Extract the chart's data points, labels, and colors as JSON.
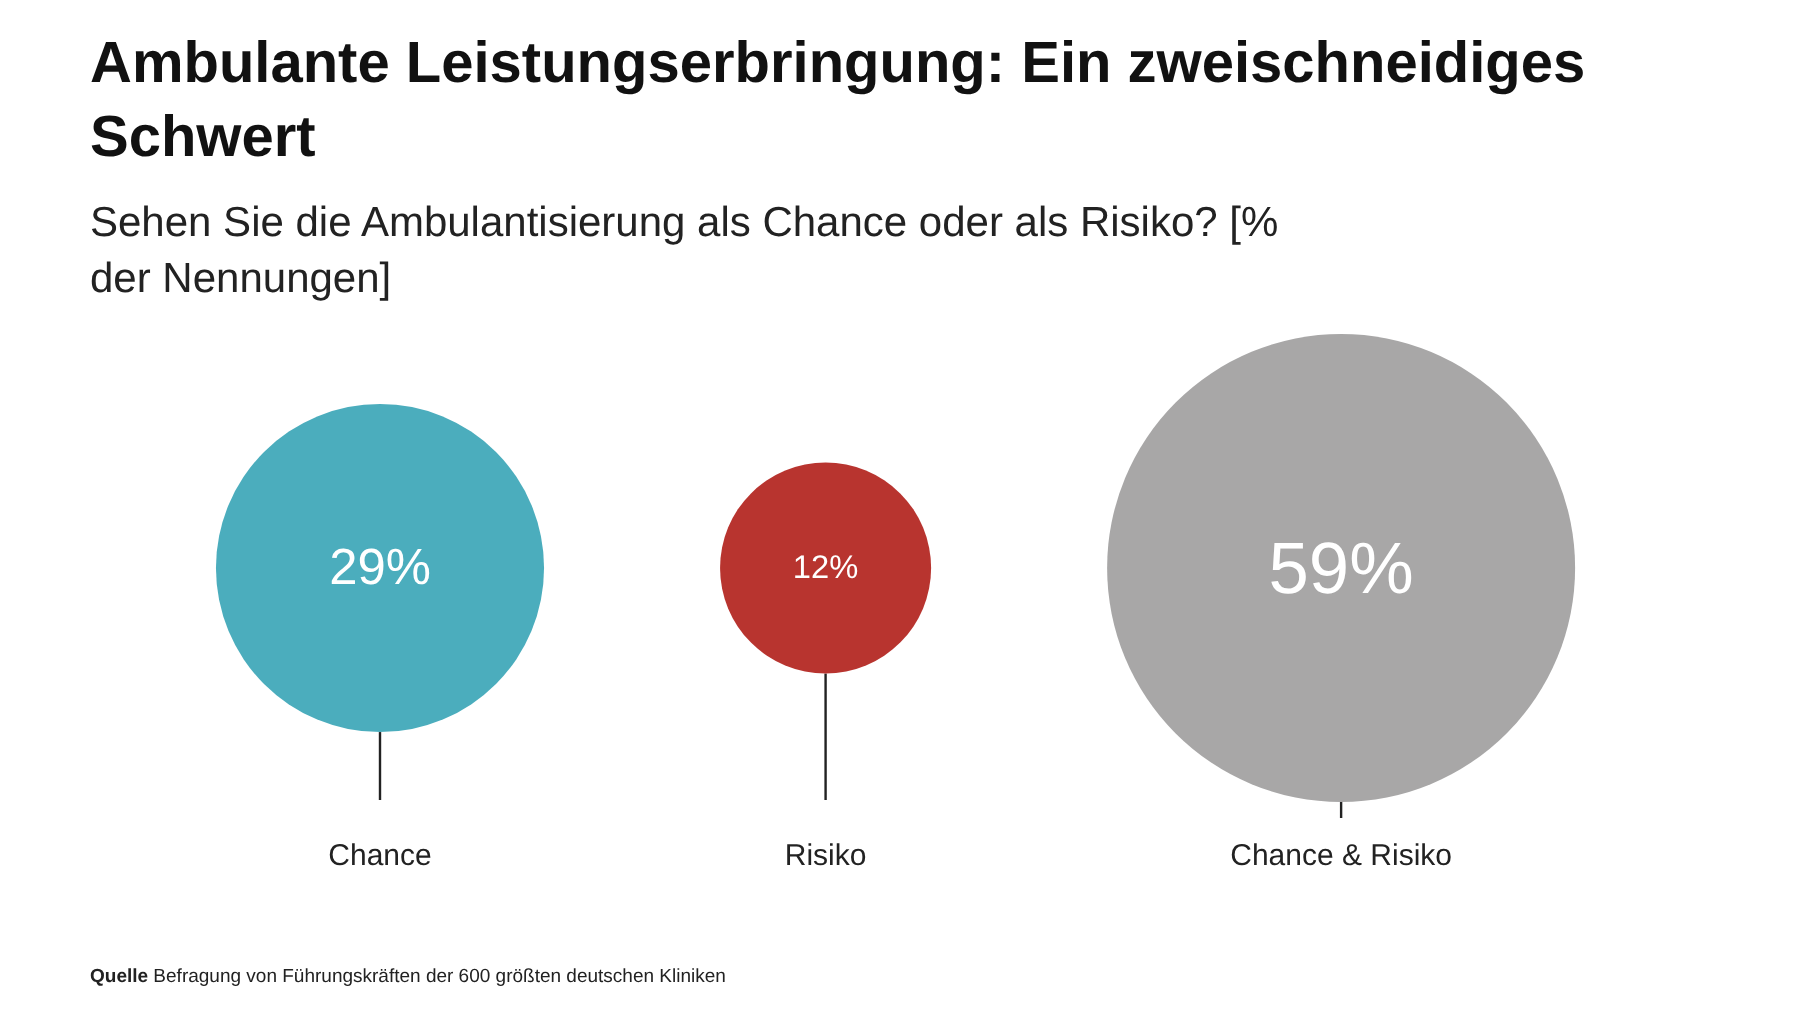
{
  "chart_data": {
    "type": "other",
    "title": "Ambulante Leistungserbringung: Ein zweischneidiges Schwert",
    "subtitle": "Sehen Sie die Ambulantisierung als Chance oder als Risiko? [% der Nennungen]",
    "categories": [
      "Chance",
      "Risiko",
      "Chance & Risiko"
    ],
    "values": [
      29,
      12,
      59
    ],
    "value_labels": [
      "29%",
      "12%",
      "59%"
    ],
    "colors": [
      "#4badbd",
      "#b8342f",
      "#a8a7a7"
    ],
    "annotations": [
      "Quelle Befragung von Führungskräften der 600 größten deutschen Kliniken"
    ]
  }
}
